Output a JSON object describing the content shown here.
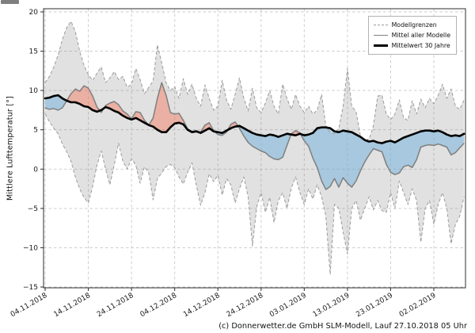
{
  "chart_data": {
    "type": "line",
    "title": "",
    "xlabel": "",
    "ylabel": "Mittlere Lufttemperatur [°]",
    "caption": "(c) Donnerwetter.de GmbH SLM-Modell, Lauf 27.10.2018 05 Uhr",
    "grid": true,
    "ylim": [
      -15,
      20.5
    ],
    "y_ticks": [
      20,
      15,
      10,
      5,
      0,
      -5,
      -10,
      -15
    ],
    "x_tick_days": [
      0,
      10,
      20,
      30,
      40,
      50,
      60,
      70,
      80,
      90
    ],
    "x_tick_labels": [
      "04.11.2018",
      "14.11.2018",
      "24.11.2018",
      "04.12.2018",
      "14.12.2018",
      "24.12.2018",
      "03.01.2019",
      "13.01.2019",
      "23.01.2019",
      "02.02.2019"
    ],
    "legend": {
      "position": "top-right",
      "entries": [
        {
          "label": "Modellgrenzen",
          "style": "dashed-gray"
        },
        {
          "label": "Mittel aller Modelle",
          "style": "solid-gray"
        },
        {
          "label": "Mittelwert 30 Jahre",
          "style": "solid-black-thick"
        }
      ]
    },
    "colors": {
      "band": "rgba(128,128,128,0.24)",
      "bound_line": "#9b9b9b",
      "warm": "rgba(244,128,104,0.5)",
      "cold": "rgba(120,180,220,0.55)",
      "mean_line": "#7f7f7f",
      "clim_line": "#000000",
      "grid": "#c8c8c8",
      "spine": "#2e2e2e",
      "tick_text": "#1a1a1a"
    },
    "series": {
      "model_max": {
        "label": "Modellgrenzen (oben)",
        "values": [
          11.0,
          11.8,
          13.0,
          14.5,
          16.5,
          18.0,
          18.8,
          17.5,
          15.0,
          13.2,
          12.0,
          11.3,
          12.2,
          13.0,
          11.0,
          11.6,
          12.4,
          11.4,
          11.8,
          10.4,
          10.8,
          12.8,
          11.4,
          9.6,
          10.4,
          11.2,
          15.8,
          13.5,
          11.0,
          10.0,
          10.5,
          9.0,
          11.5,
          9.5,
          10.8,
          9.0,
          8.0,
          10.7,
          9.0,
          7.5,
          8.0,
          11.3,
          8.8,
          7.6,
          9.5,
          11.6,
          9.0,
          7.4,
          10.3,
          7.8,
          7.2,
          8.4,
          10.0,
          8.0,
          7.0,
          10.8,
          9.0,
          7.6,
          9.5,
          8.0,
          7.2,
          8.0,
          7.0,
          7.5,
          9.5,
          5.5,
          4.6,
          4.5,
          5.2,
          8.0,
          12.8,
          8.0,
          7.3,
          4.2,
          3.7,
          3.8,
          5.5,
          9.3,
          9.4,
          7.0,
          6.3,
          7.0,
          8.8,
          6.5,
          6.2,
          8.7,
          7.0,
          8.9,
          7.8,
          9.0,
          8.3,
          9.4,
          10.8,
          9.0,
          10.2,
          8.0,
          7.6,
          8.8
        ]
      },
      "model_min": {
        "label": "Modellgrenzen (unten)",
        "values": [
          7.0,
          6.0,
          5.2,
          4.5,
          3.2,
          2.2,
          1.0,
          -1.0,
          -2.5,
          -3.6,
          -4.3,
          -2.2,
          0.5,
          2.3,
          0.0,
          -2.0,
          0.5,
          3.3,
          1.0,
          0.0,
          1.3,
          0.5,
          -1.8,
          0.3,
          -0.5,
          -3.9,
          -1.2,
          -0.5,
          0.3,
          0.6,
          0.2,
          -1.0,
          -1.9,
          -0.4,
          0.8,
          -2.0,
          -4.6,
          -3.0,
          -0.6,
          -1.6,
          -0.8,
          -3.3,
          -1.2,
          -2.0,
          -4.3,
          -2.5,
          -1.0,
          -3.5,
          -9.8,
          -4.8,
          -3.0,
          -5.5,
          -3.6,
          -6.8,
          -4.0,
          -3.0,
          -5.0,
          -2.4,
          -1.0,
          -3.0,
          -4.5,
          -2.5,
          -3.8,
          -2.0,
          -3.5,
          -6.0,
          -13.4,
          -4.5,
          -5.0,
          -8.0,
          -10.8,
          -5.0,
          -4.0,
          -6.5,
          -5.0,
          -3.5,
          -5.2,
          -4.0,
          -5.3,
          -5.5,
          -3.0,
          -5.0,
          -1.5,
          -3.0,
          -4.5,
          -2.5,
          -4.0,
          -9.3,
          -5.0,
          -4.0,
          -7.0,
          -4.5,
          -3.0,
          -5.0,
          -9.5,
          -7.0,
          -6.0,
          -3.5
        ]
      },
      "model_mean": {
        "label": "Mittel aller Modelle",
        "values": [
          7.8,
          7.6,
          7.7,
          7.5,
          7.8,
          8.7,
          9.6,
          10.2,
          9.9,
          10.6,
          10.3,
          9.3,
          7.9,
          7.2,
          8.1,
          8.4,
          8.6,
          8.2,
          7.4,
          7.0,
          6.4,
          7.3,
          7.2,
          6.2,
          5.6,
          6.5,
          9.0,
          11.0,
          9.4,
          7.2,
          7.0,
          7.1,
          6.2,
          5.1,
          4.8,
          4.9,
          4.7,
          5.6,
          5.9,
          4.9,
          4.4,
          4.3,
          4.7,
          5.7,
          6.0,
          5.2,
          4.2,
          3.4,
          2.9,
          2.6,
          2.3,
          2.1,
          1.6,
          1.3,
          1.2,
          1.5,
          3.0,
          4.5,
          4.9,
          4.6,
          3.6,
          2.9,
          1.4,
          0.2,
          -1.5,
          -2.6,
          -2.2,
          -1.2,
          -2.3,
          -1.1,
          -1.8,
          -2.3,
          -1.5,
          -0.2,
          0.9,
          1.8,
          2.6,
          2.4,
          2.2,
          0.6,
          -0.4,
          -0.7,
          -0.5,
          0.3,
          0.5,
          0.2,
          1.2,
          2.8,
          3.0,
          3.1,
          3.0,
          3.2,
          3.0,
          2.8,
          1.8,
          2.1,
          2.7,
          3.3
        ]
      },
      "mean_30y": {
        "label": "Mittelwert 30 Jahre",
        "values": [
          9.0,
          9.1,
          9.3,
          9.4,
          9.0,
          8.7,
          8.5,
          8.5,
          8.3,
          8.0,
          7.9,
          7.5,
          7.3,
          7.5,
          7.9,
          7.7,
          7.4,
          7.2,
          6.8,
          6.5,
          6.3,
          6.5,
          6.2,
          5.9,
          5.6,
          5.4,
          5.0,
          4.7,
          4.7,
          5.3,
          5.8,
          5.9,
          5.7,
          5.0,
          4.7,
          4.8,
          4.6,
          4.9,
          5.2,
          4.8,
          4.7,
          4.6,
          4.9,
          5.2,
          5.4,
          5.5,
          5.2,
          4.9,
          4.6,
          4.4,
          4.3,
          4.2,
          4.4,
          4.3,
          4.1,
          4.3,
          4.5,
          4.4,
          4.3,
          4.5,
          4.3,
          4.4,
          4.6,
          5.2,
          5.3,
          5.3,
          5.2,
          4.8,
          4.7,
          4.9,
          4.8,
          4.7,
          4.4,
          4.1,
          3.7,
          3.5,
          3.6,
          3.4,
          3.3,
          3.5,
          3.6,
          3.4,
          3.7,
          4.0,
          4.2,
          4.4,
          4.6,
          4.8,
          4.9,
          4.9,
          4.8,
          4.9,
          4.7,
          4.4,
          4.2,
          4.3,
          4.2,
          4.5
        ]
      }
    }
  }
}
